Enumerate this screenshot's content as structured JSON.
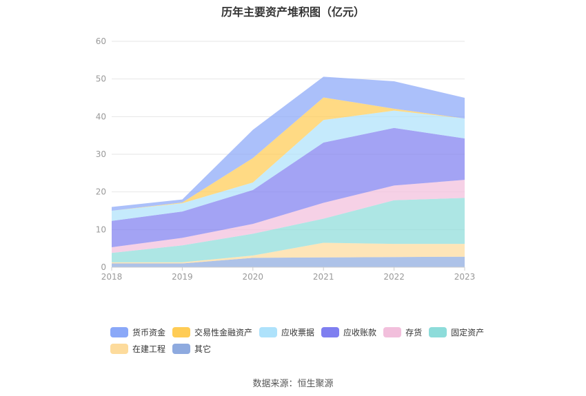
{
  "chart_data": {
    "type": "area",
    "title": "历年主要资产堆积图（亿元）",
    "x": [
      "2018",
      "2019",
      "2020",
      "2021",
      "2022",
      "2023"
    ],
    "ylim": [
      0,
      60
    ],
    "yticks": [
      0,
      10,
      20,
      30,
      40,
      50,
      60
    ],
    "stacked": true,
    "grid": true,
    "legend_position": "bottom",
    "series": [
      {
        "name": "其它",
        "color": "#8eaadf",
        "values": [
          1.0,
          1.0,
          2.5,
          2.6,
          2.7,
          2.8
        ]
      },
      {
        "name": "在建工程",
        "color": "#fddb9c",
        "values": [
          0.3,
          0.3,
          0.6,
          3.9,
          3.5,
          3.4
        ]
      },
      {
        "name": "固定资产",
        "color": "#8ddcda",
        "values": [
          2.5,
          4.5,
          5.8,
          6.4,
          11.6,
          12.2
        ]
      },
      {
        "name": "存货",
        "color": "#f2bfdc",
        "values": [
          1.5,
          2.0,
          2.6,
          4.2,
          3.9,
          4.8
        ]
      },
      {
        "name": "应收账款",
        "color": "#7f7ff0",
        "values": [
          7.0,
          7.0,
          9.0,
          16.0,
          15.3,
          11.0
        ]
      },
      {
        "name": "应收票据",
        "color": "#aee2fb",
        "values": [
          2.7,
          2.2,
          2.0,
          6.0,
          4.6,
          5.3
        ]
      },
      {
        "name": "交易性金融资产",
        "color": "#ffcc55",
        "values": [
          0.0,
          0.2,
          6.5,
          6.0,
          0.5,
          0.0
        ]
      },
      {
        "name": "货币资金",
        "color": "#8aa8f8",
        "values": [
          1.0,
          0.8,
          7.5,
          5.5,
          7.3,
          5.5
        ]
      }
    ],
    "legend_order": [
      "货币资金",
      "交易性金融资产",
      "应收票据",
      "应收账款",
      "存货",
      "固定资产",
      "在建工程",
      "其它"
    ]
  },
  "source_note": "数据来源：恒生聚源"
}
